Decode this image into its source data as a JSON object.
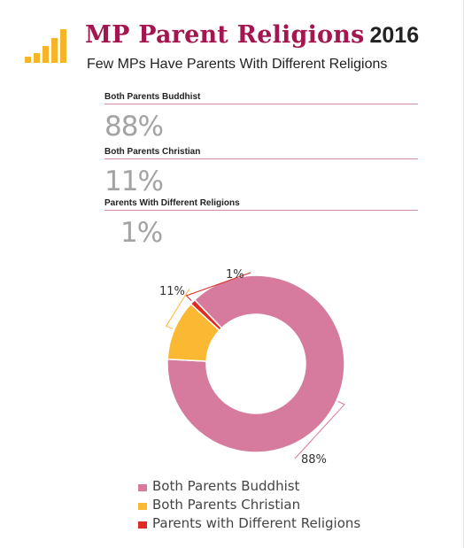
{
  "header": {
    "title": "MP Parent Religions",
    "year": "2016",
    "subtitle": "Few MPs Have Parents With Different Religions"
  },
  "stats": [
    {
      "label": "Both Parents Buddhist",
      "value": "88%"
    },
    {
      "label": "Both Parents Christian",
      "value": "11%"
    },
    {
      "label": "Parents With Different Religions",
      "value": "1%"
    }
  ],
  "colors": {
    "title": "#a3164f",
    "rule": "#d58aa5",
    "stat_value": "#a3a3a3",
    "logo": "#f5b526"
  },
  "chart_data": {
    "type": "pie",
    "donut": true,
    "categories": [
      "Both Parents Buddhist",
      "Both Parents Christian",
      "Parents with Different Religions"
    ],
    "values": [
      88,
      11,
      1
    ],
    "data_labels": [
      "88%",
      "11%",
      "1%"
    ],
    "colors": [
      "#d67a9e",
      "#fbb832",
      "#e02a26"
    ],
    "legend_position": "bottom"
  },
  "legend": [
    {
      "label": "Both Parents Buddhist",
      "color": "#d67a9e"
    },
    {
      "label": "Both Parents Christian",
      "color": "#fbb832"
    },
    {
      "label": "Parents with Different Religions",
      "color": "#e02a26"
    }
  ]
}
